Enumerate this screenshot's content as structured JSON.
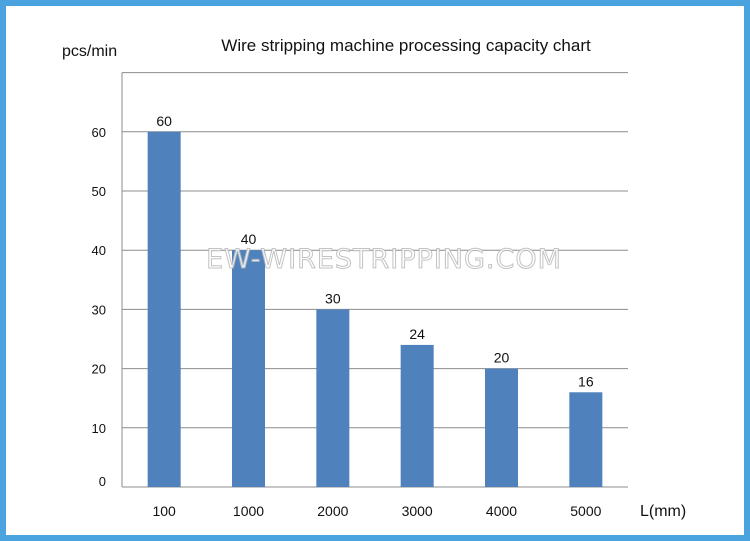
{
  "chart_data": {
    "type": "bar",
    "title": "Wire stripping machine processing capacity chart",
    "ylabel": "pcs/min",
    "xlabel": "L(mm)",
    "categories": [
      "100",
      "1000",
      "2000",
      "3000",
      "4000",
      "5000"
    ],
    "values": [
      60,
      40,
      30,
      24,
      20,
      16
    ],
    "data_labels": [
      "60",
      "40",
      "30",
      "24",
      "20",
      "16"
    ],
    "yticks": [
      0,
      10,
      20,
      30,
      40,
      50,
      60
    ],
    "ylim": [
      0,
      70
    ],
    "grid": true,
    "legend": "none",
    "colors": {
      "bar": "#4f81bd",
      "grid": "#8c8c8c",
      "frame_border": "#4aa3df"
    }
  },
  "watermark": "EW-WIRESTRIPPING.COM"
}
